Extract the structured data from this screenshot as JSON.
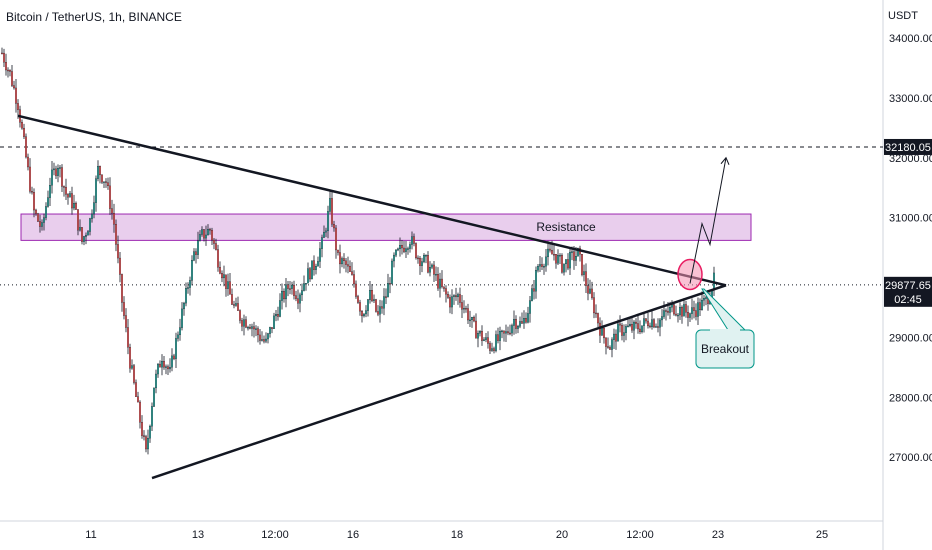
{
  "header": {
    "symbol_title": "Bitcoin / TetherUS, 1h, BINANCE"
  },
  "price_axis": {
    "currency": "USDT",
    "ticks": [
      "34000.00",
      "33000.00",
      "32000.00",
      "31000.00",
      "29000.00",
      "28000.00",
      "27000.00"
    ],
    "tick_values": [
      34000,
      33000,
      32000,
      31000,
      29000,
      28000,
      27000
    ],
    "target_label": "32180.05",
    "last_price_label": "29877.65",
    "countdown_label": "02:45"
  },
  "time_axis": {
    "labels": [
      "11",
      "13",
      "12:00",
      "16",
      "18",
      "20",
      "12:00",
      "23",
      "25"
    ]
  },
  "annotations": {
    "resistance_label": "Resistance",
    "breakout_label": "Breakout"
  },
  "colors": {
    "up_candle": "#26a69a",
    "down_candle": "#ef5350",
    "wick": "#131722",
    "resistance_fill": "#e1bee7",
    "resistance_border": "#9c27b0",
    "callout_fill": "#e0f2f1",
    "callout_border": "#009688",
    "circle_fill": "#f48fb1",
    "circle_border": "#e91e63"
  },
  "chart_data": {
    "type": "candlestick",
    "title": "Bitcoin / TetherUS, 1h, BINANCE",
    "ylabel": "USDT",
    "ylim": [
      26500,
      34300
    ],
    "x_ticks": [
      "11",
      "13",
      "12:00",
      "16",
      "18",
      "20",
      "12:00",
      "23",
      "25"
    ],
    "close_path": [
      [
        0,
        33750
      ],
      [
        4,
        33400
      ],
      [
        8,
        32900
      ],
      [
        12,
        32000
      ],
      [
        16,
        31100
      ],
      [
        20,
        30800
      ],
      [
        24,
        31600
      ],
      [
        28,
        31900
      ],
      [
        32,
        31400
      ],
      [
        36,
        31200
      ],
      [
        40,
        30600
      ],
      [
        44,
        30950
      ],
      [
        48,
        31800
      ],
      [
        52,
        31600
      ],
      [
        56,
        30900
      ],
      [
        60,
        29600
      ],
      [
        64,
        28600
      ],
      [
        68,
        27800
      ],
      [
        72,
        27050
      ],
      [
        76,
        28200
      ],
      [
        80,
        28700
      ],
      [
        84,
        28400
      ],
      [
        88,
        29100
      ],
      [
        92,
        29700
      ],
      [
        96,
        30400
      ],
      [
        100,
        30700
      ],
      [
        104,
        30800
      ],
      [
        108,
        30300
      ],
      [
        112,
        29900
      ],
      [
        116,
        29500
      ],
      [
        120,
        29300
      ],
      [
        124,
        29250
      ],
      [
        128,
        29050
      ],
      [
        132,
        28900
      ],
      [
        136,
        29300
      ],
      [
        140,
        29650
      ],
      [
        144,
        29900
      ],
      [
        148,
        29700
      ],
      [
        152,
        30000
      ],
      [
        156,
        30200
      ],
      [
        160,
        30550
      ],
      [
        164,
        31200
      ],
      [
        168,
        30300
      ],
      [
        172,
        30200
      ],
      [
        176,
        29900
      ],
      [
        180,
        29400
      ],
      [
        184,
        29700
      ],
      [
        188,
        29350
      ],
      [
        192,
        29700
      ],
      [
        196,
        30300
      ],
      [
        200,
        30500
      ],
      [
        204,
        30650
      ],
      [
        208,
        30350
      ],
      [
        212,
        30250
      ],
      [
        216,
        30050
      ],
      [
        220,
        29800
      ],
      [
        224,
        29600
      ],
      [
        228,
        29700
      ],
      [
        232,
        29450
      ],
      [
        236,
        29150
      ],
      [
        240,
        29000
      ],
      [
        244,
        28850
      ],
      [
        248,
        28950
      ],
      [
        252,
        29050
      ],
      [
        256,
        29300
      ],
      [
        260,
        29200
      ],
      [
        264,
        29550
      ],
      [
        268,
        30200
      ],
      [
        272,
        30350
      ],
      [
        276,
        30400
      ],
      [
        280,
        30200
      ],
      [
        284,
        30300
      ],
      [
        288,
        30400
      ],
      [
        292,
        29900
      ],
      [
        296,
        29500
      ],
      [
        300,
        29050
      ],
      [
        304,
        28850
      ],
      [
        308,
        29100
      ],
      [
        312,
        29150
      ],
      [
        316,
        29150
      ],
      [
        320,
        29200
      ],
      [
        324,
        29300
      ],
      [
        328,
        29250
      ],
      [
        332,
        29400
      ],
      [
        336,
        29500
      ],
      [
        340,
        29450
      ],
      [
        344,
        29400
      ],
      [
        348,
        29500
      ],
      [
        352,
        29600
      ],
      [
        356,
        29950
      ]
    ],
    "lines": [
      {
        "name": "descending trendline",
        "from": {
          "x": 8,
          "y": 32700
        },
        "to": {
          "x": 362,
          "y": 29870
        }
      },
      {
        "name": "ascending trendline",
        "from": {
          "x": 75,
          "y": 26650
        },
        "to": {
          "x": 362,
          "y": 29870
        }
      }
    ],
    "zones": [
      {
        "label": "Resistance",
        "y_low": 30620,
        "y_high": 31060
      }
    ],
    "levels": [
      {
        "label": "32180.05",
        "value": 32180.05,
        "style": "dashed"
      },
      {
        "label": "29877.65",
        "value": 29877.65,
        "style": "dotted"
      }
    ],
    "projection": [
      [
        344,
        29900
      ],
      [
        350,
        30900
      ],
      [
        354,
        30550
      ],
      [
        362,
        32000
      ]
    ]
  }
}
